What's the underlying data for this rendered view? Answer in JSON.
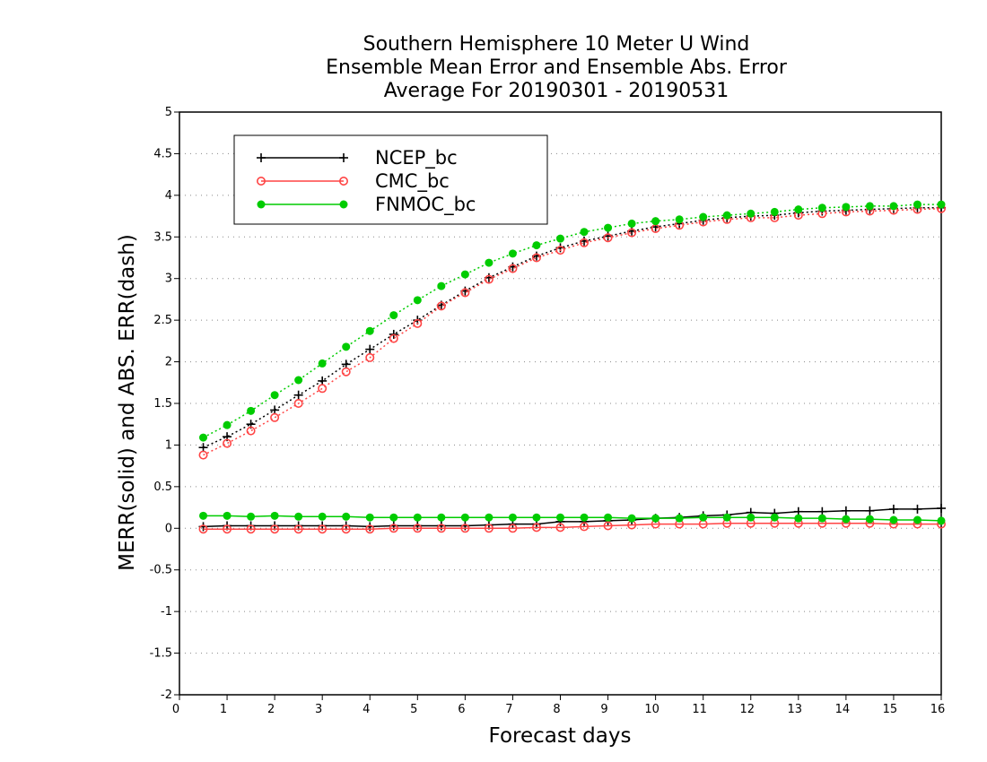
{
  "chart_data": {
    "type": "line",
    "title": [
      "Southern Hemisphere 10 Meter U Wind",
      "Ensemble Mean Error and Ensemble Abs. Error",
      "Average For 20190301 - 20190531"
    ],
    "xlabel": "Forecast days",
    "ylabel": "MERR(solid) and ABS. ERR(dash)",
    "xlim": [
      0,
      16
    ],
    "ylim": [
      -2,
      5
    ],
    "xticks": [
      "0",
      "1",
      "2",
      "3",
      "4",
      "5",
      "6",
      "7",
      "8",
      "9",
      "10",
      "11",
      "12",
      "13",
      "14",
      "15",
      "16"
    ],
    "yticks": [
      "5",
      "4.5",
      "4",
      "3.5",
      "3",
      "2.5",
      "2",
      "1.5",
      "1",
      "0.5",
      "0",
      "-0.5",
      "-1",
      "-1.5",
      "-2"
    ],
    "grid": true,
    "legend_position": "top-left",
    "x": [
      0.5,
      1,
      1.5,
      2,
      2.5,
      3,
      3.5,
      4,
      4.5,
      5,
      5.5,
      6,
      6.5,
      7,
      7.5,
      8,
      8.5,
      9,
      9.5,
      10,
      10.5,
      11,
      11.5,
      12,
      12.5,
      13,
      13.5,
      14,
      14.5,
      15,
      15.5,
      16
    ],
    "series": [
      {
        "name": "NCEP_bc",
        "color": "#000000",
        "marker": "plus",
        "merr": [
          0.02,
          0.03,
          0.03,
          0.03,
          0.03,
          0.03,
          0.03,
          0.02,
          0.03,
          0.03,
          0.03,
          0.03,
          0.04,
          0.05,
          0.05,
          0.08,
          0.08,
          0.09,
          0.1,
          0.12,
          0.13,
          0.15,
          0.16,
          0.19,
          0.18,
          0.2,
          0.2,
          0.21,
          0.21,
          0.23,
          0.23,
          0.24
        ],
        "abs_err": [
          0.97,
          1.1,
          1.25,
          1.42,
          1.6,
          1.77,
          1.97,
          2.15,
          2.33,
          2.5,
          2.68,
          2.85,
          3.01,
          3.14,
          3.27,
          3.37,
          3.45,
          3.51,
          3.57,
          3.62,
          3.66,
          3.7,
          3.73,
          3.75,
          3.76,
          3.79,
          3.81,
          3.82,
          3.83,
          3.84,
          3.85,
          3.85
        ]
      },
      {
        "name": "CMC_bc",
        "color": "#ff4444",
        "marker": "open-circle",
        "merr": [
          -0.01,
          -0.01,
          -0.01,
          -0.01,
          -0.01,
          -0.01,
          -0.01,
          -0.01,
          0.0,
          0.0,
          0.0,
          0.0,
          0.0,
          0.0,
          0.01,
          0.01,
          0.02,
          0.03,
          0.04,
          0.05,
          0.05,
          0.05,
          0.06,
          0.06,
          0.06,
          0.06,
          0.06,
          0.06,
          0.06,
          0.05,
          0.05,
          0.05
        ],
        "abs_err": [
          0.88,
          1.02,
          1.17,
          1.33,
          1.5,
          1.68,
          1.88,
          2.05,
          2.28,
          2.46,
          2.67,
          2.83,
          2.99,
          3.12,
          3.25,
          3.34,
          3.43,
          3.49,
          3.55,
          3.6,
          3.64,
          3.68,
          3.71,
          3.73,
          3.73,
          3.76,
          3.78,
          3.8,
          3.81,
          3.82,
          3.83,
          3.84
        ]
      },
      {
        "name": "FNMOC_bc",
        "color": "#00cc00",
        "marker": "filled-circle",
        "merr": [
          0.15,
          0.15,
          0.14,
          0.15,
          0.14,
          0.14,
          0.14,
          0.13,
          0.13,
          0.13,
          0.13,
          0.13,
          0.13,
          0.13,
          0.13,
          0.13,
          0.13,
          0.13,
          0.12,
          0.12,
          0.12,
          0.13,
          0.13,
          0.13,
          0.13,
          0.12,
          0.12,
          0.11,
          0.11,
          0.1,
          0.1,
          0.09
        ],
        "abs_err": [
          1.09,
          1.24,
          1.41,
          1.6,
          1.78,
          1.98,
          2.18,
          2.37,
          2.56,
          2.74,
          2.91,
          3.05,
          3.19,
          3.3,
          3.4,
          3.48,
          3.56,
          3.61,
          3.66,
          3.69,
          3.71,
          3.74,
          3.76,
          3.78,
          3.8,
          3.83,
          3.85,
          3.86,
          3.87,
          3.87,
          3.89,
          3.89
        ]
      }
    ]
  }
}
